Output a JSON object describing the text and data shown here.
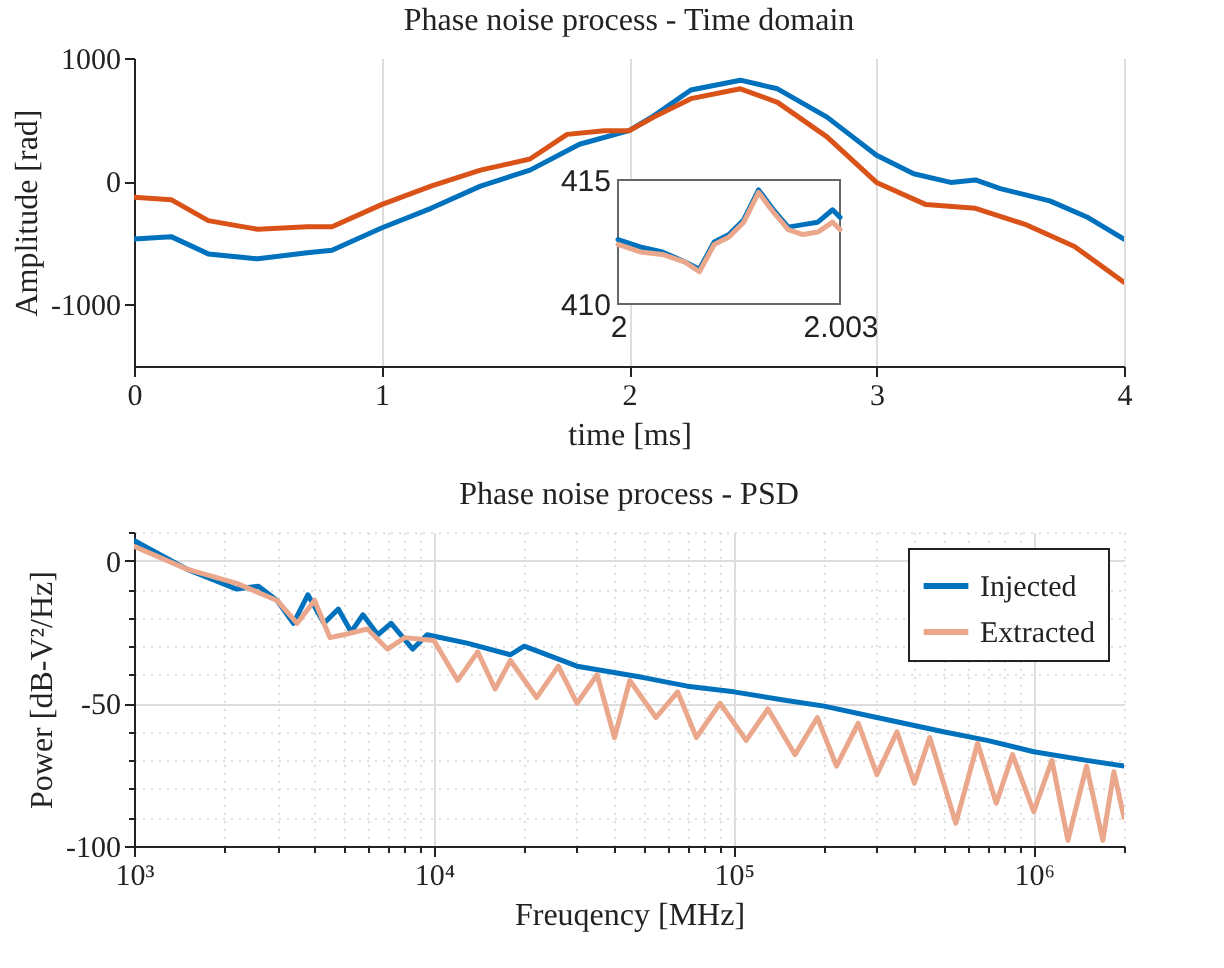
{
  "chart_data": [
    {
      "type": "line",
      "title": "Phase noise process - Time domain",
      "xlabel": "time [ms]",
      "ylabel": "Amplitude [rad]",
      "xlim": [
        0,
        4
      ],
      "ylim": [
        -1500,
        1000
      ],
      "xticks": [
        0,
        1,
        2,
        3,
        4
      ],
      "yticks": [
        -1000,
        0,
        1000
      ],
      "grid": "x",
      "legend": false,
      "series": [
        {
          "color": "#0072bd",
          "x": [
            0,
            0.15,
            0.3,
            0.5,
            0.7,
            0.8,
            1.0,
            1.2,
            1.4,
            1.6,
            1.8,
            2.0,
            2.1,
            2.25,
            2.45,
            2.6,
            2.8,
            3.0,
            3.15,
            3.3,
            3.4,
            3.5,
            3.7,
            3.85,
            4.0
          ],
          "values": [
            -470,
            -450,
            -590,
            -630,
            -580,
            -560,
            -380,
            -220,
            -40,
            90,
            300,
            410,
            530,
            740,
            820,
            750,
            520,
            210,
            60,
            -10,
            10,
            -60,
            -160,
            -290,
            -470
          ]
        },
        {
          "color": "#d95319",
          "x": [
            0,
            0.15,
            0.3,
            0.5,
            0.7,
            0.8,
            1.0,
            1.2,
            1.4,
            1.6,
            1.75,
            1.9,
            2.0,
            2.1,
            2.25,
            2.45,
            2.6,
            2.8,
            3.0,
            3.2,
            3.4,
            3.6,
            3.8,
            4.0
          ],
          "values": [
            -130,
            -150,
            -320,
            -390,
            -370,
            -370,
            -190,
            -40,
            90,
            180,
            380,
            410,
            410,
            520,
            670,
            750,
            640,
            360,
            -10,
            -190,
            -220,
            -350,
            -530,
            -820
          ]
        }
      ]
    },
    {
      "type": "line",
      "xlim": [
        2,
        2.003
      ],
      "ylim": [
        410,
        415
      ],
      "xticks": [
        2,
        2.003
      ],
      "yticks": [
        410,
        415
      ],
      "legend": false,
      "x": [
        2.0,
        2.0003,
        2.0006,
        2.0009,
        2.0011,
        2.0013,
        2.0015,
        2.0017,
        2.0019,
        2.0021,
        2.0023,
        2.0025,
        2.0027,
        2.0029,
        2.003
      ],
      "series": [
        {
          "color": "#0072bd",
          "values": [
            412.6,
            412.3,
            412.1,
            411.7,
            411.4,
            412.5,
            412.8,
            413.4,
            414.6,
            413.8,
            413.1,
            413.2,
            413.3,
            413.8,
            413.5
          ]
        },
        {
          "color": "#eaa78b",
          "values": [
            412.4,
            412.1,
            412.0,
            411.7,
            411.3,
            412.4,
            412.7,
            413.3,
            414.5,
            413.7,
            413.0,
            412.8,
            412.9,
            413.3,
            413.0
          ]
        }
      ]
    },
    {
      "type": "line",
      "title": "Phase noise process - PSD",
      "xlabel": "Freuqency [MHz]",
      "ylabel": "Power [dB-V²/Hz]",
      "log": "x",
      "xlim": [
        1000,
        2000000
      ],
      "ylim": [
        -100,
        10
      ],
      "xticks": [
        {
          "value": 1000,
          "label": "10³"
        },
        {
          "value": 2000,
          "label": null
        },
        {
          "value": 3000,
          "label": null
        },
        {
          "value": 4000,
          "label": null
        },
        {
          "value": 5000,
          "label": null
        },
        {
          "value": 6000,
          "label": null
        },
        {
          "value": 7000,
          "label": null
        },
        {
          "value": 8000,
          "label": null
        },
        {
          "value": 9000,
          "label": null
        },
        {
          "value": 10000,
          "label": "10⁴"
        },
        {
          "value": 20000,
          "label": null
        },
        {
          "value": 30000,
          "label": null
        },
        {
          "value": 40000,
          "label": null
        },
        {
          "value": 50000,
          "label": null
        },
        {
          "value": 60000,
          "label": null
        },
        {
          "value": 70000,
          "label": null
        },
        {
          "value": 80000,
          "label": null
        },
        {
          "value": 90000,
          "label": null
        },
        {
          "value": 100000,
          "label": "10⁵"
        },
        {
          "value": 200000,
          "label": null
        },
        {
          "value": 300000,
          "label": null
        },
        {
          "value": 400000,
          "label": null
        },
        {
          "value": 500000,
          "label": null
        },
        {
          "value": 600000,
          "label": null
        },
        {
          "value": 700000,
          "label": null
        },
        {
          "value": 800000,
          "label": null
        },
        {
          "value": 900000,
          "label": null
        },
        {
          "value": 1000000,
          "label": "10⁶"
        },
        {
          "value": 2000000,
          "label": null
        }
      ],
      "yticks": [
        -100,
        {
          "value": -90,
          "label": null
        },
        {
          "value": -80,
          "label": null
        },
        {
          "value": -70,
          "label": null
        },
        {
          "value": -60,
          "label": null
        },
        -50,
        {
          "value": -40,
          "label": null
        },
        {
          "value": -30,
          "label": null
        },
        {
          "value": -20,
          "label": null
        },
        {
          "value": -10,
          "label": null
        },
        0,
        {
          "value": 10,
          "label": null
        }
      ],
      "grid": true,
      "legend": "top right",
      "series": [
        {
          "name": "Injected",
          "color": "#0072bd",
          "x": [
            1000,
            1500,
            2200,
            2600,
            3000,
            3400,
            3800,
            4300,
            4800,
            5300,
            5800,
            6500,
            7200,
            8500,
            9500,
            13000,
            18000,
            20000,
            30000,
            50000,
            70000,
            100000,
            150000,
            200000,
            300000,
            500000,
            700000,
            1000000,
            1500000,
            2000000
          ],
          "values": [
            7,
            -3,
            -10,
            -9,
            -14,
            -22,
            -12,
            -22,
            -17,
            -25,
            -19,
            -26,
            -22,
            -31,
            -26,
            -29,
            -33,
            -30,
            -37,
            -41,
            -44,
            -46,
            -49,
            -51,
            -55,
            -60,
            -63,
            -67,
            -70,
            -72
          ]
        },
        {
          "name": "Extracted",
          "color": "#eaa78b",
          "x": [
            1000,
            1500,
            2200,
            3000,
            3500,
            4000,
            4500,
            5000,
            6000,
            7000,
            8000,
            10000,
            12000,
            14000,
            16000,
            18000,
            22000,
            26000,
            30000,
            35000,
            40000,
            45000,
            55000,
            65000,
            75000,
            90000,
            110000,
            130000,
            160000,
            190000,
            220000,
            260000,
            300000,
            350000,
            400000,
            450000,
            550000,
            650000,
            750000,
            850000,
            1000000,
            1150000,
            1300000,
            1500000,
            1700000,
            1850000,
            2000000
          ],
          "values": [
            5,
            -3,
            -8,
            -14,
            -22,
            -14,
            -27,
            -26,
            -24,
            -31,
            -27,
            -28,
            -42,
            -32,
            -45,
            -35,
            -48,
            -37,
            -50,
            -40,
            -62,
            -42,
            -55,
            -46,
            -62,
            -50,
            -63,
            -52,
            -68,
            -55,
            -72,
            -57,
            -75,
            -60,
            -78,
            -62,
            -92,
            -64,
            -85,
            -68,
            -88,
            -70,
            -98,
            -72,
            -98,
            -74,
            -90
          ]
        }
      ]
    }
  ]
}
